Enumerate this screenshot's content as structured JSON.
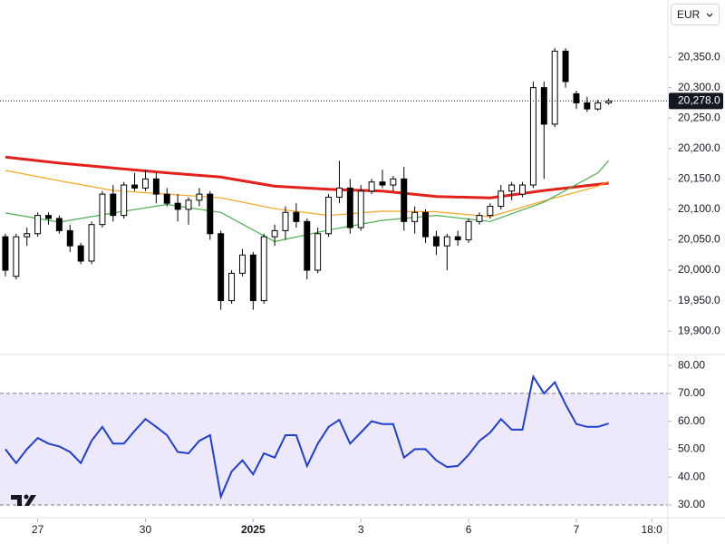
{
  "currency": "EUR",
  "chart_data": [
    {
      "type": "candlestick",
      "x": [
        0,
        1,
        2,
        3,
        4,
        5,
        6,
        7,
        8,
        9,
        10,
        11,
        12,
        13,
        14,
        15,
        16,
        17,
        18,
        19,
        20,
        21,
        22,
        23,
        24,
        25,
        26,
        27,
        28,
        29,
        30,
        31,
        32,
        33,
        34,
        35,
        36,
        37,
        38,
        39,
        40,
        41,
        42,
        43,
        44,
        45,
        46,
        47,
        48,
        49,
        50,
        51,
        52,
        53,
        54,
        55,
        56
      ],
      "open": [
        20055,
        19990,
        20055,
        20060,
        20090,
        20085,
        20065,
        20040,
        20015,
        20075,
        20125,
        20090,
        20140,
        20135,
        20150,
        20125,
        20110,
        20100,
        20115,
        20125,
        20060,
        19950,
        19995,
        20025,
        19950,
        20055,
        20065,
        20095,
        20080,
        20000,
        20060,
        20120,
        20135,
        20070,
        20130,
        20145,
        20140,
        20150,
        20080,
        20095,
        20055,
        20040,
        20055,
        20050,
        20080,
        20090,
        20105,
        20130,
        20125,
        20140,
        20300,
        20240,
        20360,
        20290,
        20275,
        20265,
        20275
      ],
      "high": [
        20060,
        20060,
        20070,
        20095,
        20095,
        20090,
        20075,
        20045,
        20080,
        20130,
        20140,
        20145,
        20160,
        20165,
        20160,
        20135,
        20125,
        20120,
        20135,
        20130,
        20065,
        20000,
        20035,
        20030,
        20060,
        20075,
        20105,
        20110,
        20085,
        20070,
        20125,
        20180,
        20150,
        20140,
        20150,
        20165,
        20155,
        20170,
        20105,
        20100,
        20065,
        20060,
        20065,
        20085,
        20095,
        20110,
        20140,
        20145,
        20145,
        20310,
        20310,
        20365,
        20365,
        20295,
        20285,
        20280,
        20282
      ],
      "low": [
        19990,
        19985,
        20040,
        20055,
        20075,
        20060,
        20030,
        20010,
        20010,
        20070,
        20080,
        20085,
        20130,
        20130,
        20110,
        20105,
        20080,
        20075,
        20105,
        20050,
        19935,
        19945,
        19990,
        19935,
        19945,
        20040,
        20050,
        20070,
        19985,
        19995,
        20055,
        20110,
        20060,
        20065,
        20125,
        20135,
        20130,
        20065,
        20060,
        20045,
        20025,
        20000,
        20040,
        20045,
        20075,
        20085,
        20100,
        20115,
        20120,
        20135,
        20150,
        20235,
        20300,
        20265,
        20260,
        20262,
        20272
      ],
      "close": [
        20000,
        20055,
        20060,
        20090,
        20085,
        20065,
        20040,
        20015,
        20075,
        20125,
        20090,
        20140,
        20135,
        20150,
        20125,
        20110,
        20100,
        20115,
        20125,
        20060,
        19950,
        19995,
        20025,
        19950,
        20055,
        20065,
        20095,
        20080,
        20000,
        20060,
        20120,
        20135,
        20070,
        20130,
        20145,
        20140,
        20150,
        20080,
        20095,
        20055,
        20040,
        20055,
        20050,
        20080,
        20090,
        20105,
        20130,
        20140,
        20140,
        20300,
        20240,
        20360,
        20310,
        20275,
        20265,
        20275,
        20278
      ],
      "up_color": "#ffffff",
      "down_color": "#000000",
      "series": [
        {
          "color": "#e3201b",
          "x": [
            0,
            5,
            10,
            15,
            20,
            25,
            30,
            35,
            40,
            45,
            50,
            55,
            56
          ],
          "values": [
            20186,
            20176,
            20168,
            20160,
            20153,
            20138,
            20133,
            20130,
            20121,
            20119,
            20131,
            20141,
            20143
          ]
        },
        {
          "color": "#f5a623",
          "x": [
            0,
            5,
            10,
            15,
            20,
            25,
            30,
            35,
            40,
            45,
            50,
            55,
            56
          ],
          "values": [
            20164,
            20147,
            20131,
            20125,
            20119,
            20101,
            20090,
            20097,
            20096,
            20088,
            20114,
            20138,
            20146
          ]
        },
        {
          "color": "#4caf50",
          "x": [
            0,
            5,
            10,
            15,
            20,
            25,
            30,
            35,
            40,
            45,
            50,
            55,
            56
          ],
          "values": [
            20094,
            20079,
            20094,
            20108,
            20095,
            20047,
            20066,
            20082,
            20090,
            20080,
            20112,
            20160,
            20180
          ]
        }
      ],
      "last_value": 20278,
      "last_value_label": "20,278.0",
      "xlim": [
        -0.5,
        61.5
      ],
      "ylim": [
        19863,
        20444
      ],
      "yticks": [
        {
          "value": 19900,
          "label": "19,900.0"
        },
        {
          "value": 19950,
          "label": "19,950.0"
        },
        {
          "value": 20000,
          "label": "20,000.0"
        },
        {
          "value": 20050,
          "label": "20,050.0"
        },
        {
          "value": 20100,
          "label": "20,100.0"
        },
        {
          "value": 20150,
          "label": "20,150.0"
        },
        {
          "value": 20200,
          "label": "20,200.0"
        },
        {
          "value": 20250,
          "label": "20,250.0"
        },
        {
          "value": 20300,
          "label": "20,300.0"
        },
        {
          "value": 20350,
          "label": "20,350.0"
        }
      ]
    },
    {
      "type": "line",
      "x": [
        0,
        1,
        2,
        3,
        4,
        5,
        6,
        7,
        8,
        9,
        10,
        11,
        12,
        13,
        14,
        15,
        16,
        17,
        18,
        19,
        20,
        21,
        22,
        23,
        24,
        25,
        26,
        27,
        28,
        29,
        30,
        31,
        32,
        33,
        34,
        35,
        36,
        37,
        38,
        39,
        40,
        41,
        42,
        43,
        44,
        45,
        46,
        47,
        48,
        49,
        50,
        51,
        52,
        53,
        54,
        55,
        56
      ],
      "series": [
        {
          "color": "#1e3fd0",
          "values": [
            50,
            45,
            50,
            54,
            52,
            51,
            49,
            45,
            53,
            58,
            52,
            52,
            56.6,
            60.8,
            58,
            55,
            49,
            48.5,
            53,
            55,
            33,
            42,
            46,
            41,
            48.5,
            47,
            55,
            55,
            44,
            52,
            58,
            60.5,
            52,
            56,
            60,
            59,
            59,
            47,
            50,
            50,
            46,
            43.6,
            44,
            48,
            53,
            56,
            60.8,
            57,
            57,
            76,
            70,
            74,
            66,
            59,
            58,
            58,
            59.2
          ]
        }
      ],
      "band": [
        30,
        70
      ],
      "band_color": "#ede9fb",
      "xlim": [
        -0.5,
        61.5
      ],
      "ylim": [
        27.4,
        83.6
      ],
      "yticks": [
        {
          "value": 30,
          "label": "30.00"
        },
        {
          "value": 40,
          "label": "40.00"
        },
        {
          "value": 50,
          "label": "50.00"
        },
        {
          "value": 60,
          "label": "60.00"
        },
        {
          "value": 70,
          "label": "70.00"
        },
        {
          "value": 80,
          "label": "80.00"
        }
      ],
      "xticks": [
        {
          "value": 3,
          "label": "27"
        },
        {
          "value": 13,
          "label": "30"
        },
        {
          "value": 23,
          "label": "2025"
        },
        {
          "value": 33,
          "label": "3"
        },
        {
          "value": 43,
          "label": "6"
        },
        {
          "value": 53,
          "label": "7"
        },
        {
          "value": 60,
          "label": "18:0"
        }
      ]
    }
  ]
}
